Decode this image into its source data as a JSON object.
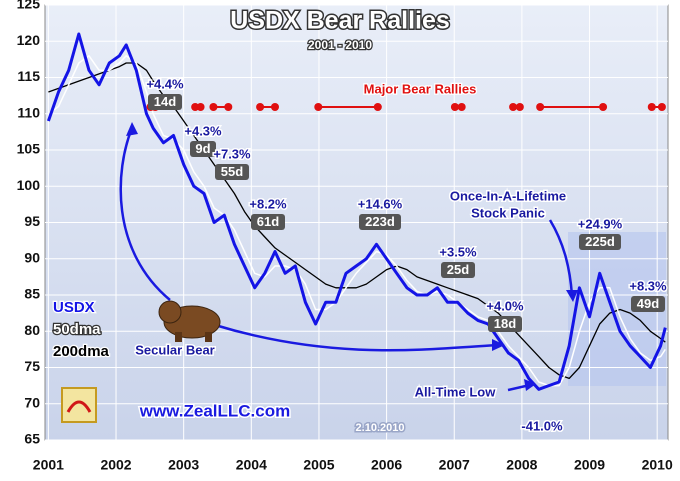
{
  "chart_data": {
    "type": "line",
    "title": "USDX Bear Rallies",
    "subtitle": "2001 - 2010",
    "x": [
      2001.0,
      2001.15,
      2001.3,
      2001.45,
      2001.6,
      2001.75,
      2001.9,
      2002.05,
      2002.15,
      2002.3,
      2002.45,
      2002.55,
      2002.7,
      2002.85,
      2003.0,
      2003.15,
      2003.3,
      2003.45,
      2003.6,
      2003.75,
      2003.9,
      2004.05,
      2004.2,
      2004.35,
      2004.5,
      2004.65,
      2004.8,
      2004.95,
      2005.1,
      2005.25,
      2005.4,
      2005.55,
      2005.7,
      2005.85,
      2006.0,
      2006.15,
      2006.3,
      2006.45,
      2006.6,
      2006.75,
      2006.9,
      2007.05,
      2007.2,
      2007.35,
      2007.5,
      2007.65,
      2007.8,
      2007.95,
      2008.1,
      2008.25,
      2008.4,
      2008.55,
      2008.7,
      2008.85,
      2009.0,
      2009.15,
      2009.3,
      2009.45,
      2009.6,
      2009.75,
      2009.9,
      2010.05,
      2010.12
    ],
    "series": [
      {
        "name": "USDX",
        "color": "#1414e6",
        "values": [
          109,
          113,
          116,
          121,
          116,
          114,
          117,
          118,
          119.5,
          116,
          110,
          108,
          106,
          107,
          103,
          100,
          99,
          95,
          96,
          92,
          89,
          86,
          88,
          91,
          88,
          89,
          84,
          81,
          84,
          84,
          88,
          89,
          90,
          92,
          90,
          88,
          86,
          85,
          85,
          86,
          84,
          84,
          82.5,
          81.5,
          81,
          79,
          77,
          76,
          73.5,
          72,
          72.5,
          73,
          78,
          86,
          82,
          88,
          84,
          80,
          78,
          76.5,
          75,
          78,
          80.5
        ]
      },
      {
        "name": "50dma",
        "color": "#ffffff",
        "values": [
          110,
          111,
          114,
          117,
          118,
          116,
          116,
          117,
          118,
          117,
          113,
          110,
          107,
          106.5,
          105,
          102,
          100,
          97,
          96,
          94,
          91,
          88,
          87.5,
          89,
          89,
          88.5,
          86.5,
          83,
          83,
          84,
          86,
          88,
          89.5,
          91,
          90.5,
          89,
          87,
          85.5,
          85,
          85.5,
          85,
          84,
          83,
          82,
          81.5,
          80,
          78,
          76.5,
          75,
          73,
          72.5,
          72.5,
          75,
          80,
          84,
          86,
          86,
          82,
          79,
          77,
          76,
          76.5,
          77.5
        ]
      },
      {
        "name": "200dma",
        "color": "#000000",
        "values": [
          113,
          113.5,
          114,
          114.5,
          115,
          115.5,
          116,
          116.5,
          117,
          117,
          116,
          114.5,
          112.5,
          111,
          109,
          107,
          105,
          103,
          101,
          99,
          96.5,
          94.5,
          93,
          91.5,
          90.5,
          89.5,
          88.5,
          87.5,
          86.5,
          86,
          86,
          86,
          86.5,
          87.5,
          88.5,
          89,
          88.5,
          87.5,
          87,
          86.5,
          86,
          85.5,
          85,
          84.5,
          83.5,
          82.5,
          81,
          79.5,
          78,
          76.5,
          75,
          74,
          73.5,
          75,
          78,
          81,
          82.5,
          83,
          82.5,
          81.5,
          80,
          79,
          78.5
        ]
      }
    ],
    "rallies_title": "Major Bear Rallies",
    "rallies": [
      {
        "start": 2002.51,
        "end": 2002.58,
        "gain": "+4.4%",
        "days": "14d"
      },
      {
        "start": 2003.17,
        "end": 2003.25,
        "gain": "+4.3%",
        "days": "9d"
      },
      {
        "start": 2003.44,
        "end": 2003.66,
        "gain": "+7.3%",
        "days": "55d"
      },
      {
        "start": 2004.13,
        "end": 2004.35,
        "gain": "+8.2%",
        "days": "61d"
      },
      {
        "start": 2004.99,
        "end": 2005.87,
        "gain": "+14.6%",
        "days": "223d"
      },
      {
        "start": 2007.01,
        "end": 2007.11,
        "gain": "+3.5%",
        "days": "25d"
      },
      {
        "start": 2007.87,
        "end": 2007.97,
        "gain": "+4.0%",
        "days": "18d"
      },
      {
        "start": 2008.27,
        "end": 2009.2,
        "gain": "+24.9%",
        "days": "225d"
      },
      {
        "start": 2009.92,
        "end": 2010.07,
        "gain": "+8.3%",
        "days": "49d"
      }
    ],
    "annotations": [
      "Once-In-A-Lifetime",
      "Stock Panic",
      "Secular Bear",
      "All-Time Low",
      "-41.0%",
      "www.ZealLLC.com",
      "2.10.2010"
    ],
    "xlim": [
      2000.95,
      2010.16
    ],
    "xticks": [
      2001,
      2002,
      2003,
      2004,
      2005,
      2006,
      2007,
      2008,
      2009,
      2010
    ],
    "ylim": [
      65,
      125
    ],
    "yticks": [
      65,
      70,
      75,
      80,
      85,
      90,
      95,
      100,
      105,
      110,
      115,
      120,
      125
    ],
    "grid": true
  }
}
